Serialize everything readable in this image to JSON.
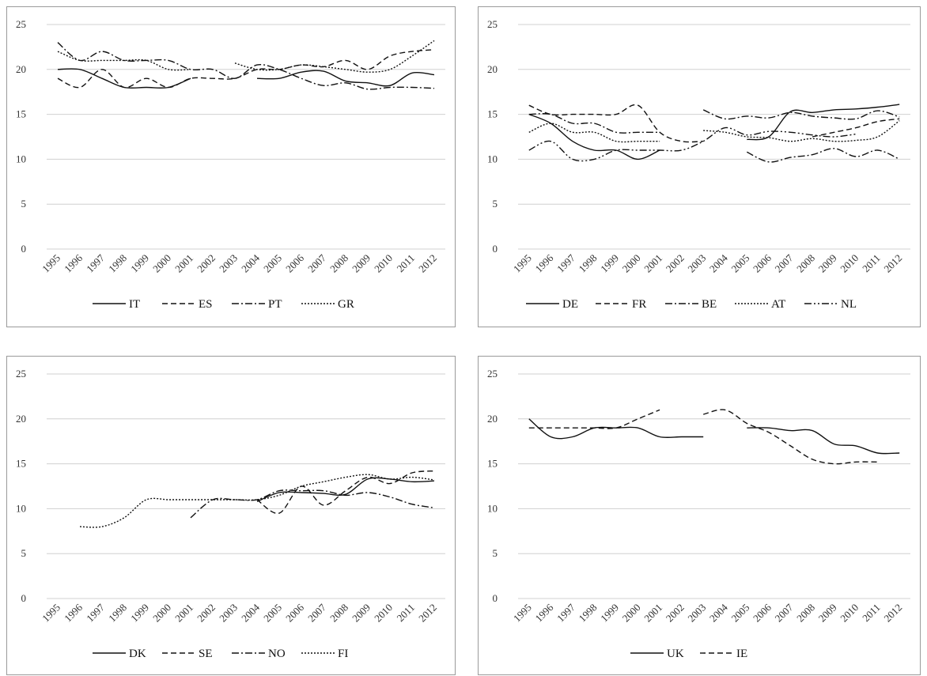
{
  "chart_data": [
    {
      "type": "line",
      "x": [
        "1995",
        "1996",
        "1997",
        "1998",
        "1999",
        "2000",
        "2001",
        "2002",
        "2003",
        "2004",
        "2005",
        "2006",
        "2007",
        "2008",
        "2009",
        "2010",
        "2011",
        "2012"
      ],
      "ylim": [
        0,
        25
      ],
      "yticks": [
        0,
        5,
        10,
        15,
        20,
        25
      ],
      "grid": true,
      "legend": "bottom",
      "series": [
        {
          "name": "IT",
          "dash": "solid",
          "values": [
            20,
            20,
            19,
            18,
            18,
            18,
            19,
            null,
            null,
            19,
            19,
            19.7,
            19.8,
            18.7,
            18.5,
            18.2,
            19.6,
            19.4
          ]
        },
        {
          "name": "ES",
          "dash": "dash",
          "values": [
            19,
            18,
            20,
            18,
            19,
            18,
            19,
            19,
            19,
            20,
            20,
            20.5,
            20.3,
            21,
            20,
            21.5,
            22,
            22.2
          ]
        },
        {
          "name": "PT",
          "dash": "dashdot",
          "values": [
            23,
            21,
            22,
            21,
            21,
            21,
            20,
            20,
            19,
            20.5,
            20,
            19,
            18.2,
            18.5,
            17.8,
            18,
            18,
            17.9
          ]
        },
        {
          "name": "GR",
          "dash": "dot",
          "values": [
            22,
            21,
            21,
            21,
            21,
            20,
            20,
            null,
            20.7,
            20,
            20,
            20.5,
            20.3,
            20,
            19.7,
            20,
            21.5,
            23.2
          ]
        }
      ]
    },
    {
      "type": "line",
      "x": [
        "1995",
        "1996",
        "1997",
        "1998",
        "1999",
        "2000",
        "2001",
        "2002",
        "2003",
        "2004",
        "2005",
        "2006",
        "2007",
        "2008",
        "2009",
        "2010",
        "2011",
        "2012"
      ],
      "ylim": [
        0,
        25
      ],
      "yticks": [
        0,
        5,
        10,
        15,
        20,
        25
      ],
      "grid": true,
      "legend": "bottom",
      "series": [
        {
          "name": "DE",
          "dash": "solid",
          "values": [
            15,
            14,
            12,
            11,
            11,
            10,
            11,
            null,
            null,
            null,
            12.2,
            12.5,
            15.3,
            15.2,
            15.5,
            15.6,
            15.8,
            16.1
          ]
        },
        {
          "name": "FR",
          "dash": "dash",
          "values": [
            16,
            15,
            15,
            15,
            15,
            16,
            13,
            12,
            12,
            null,
            null,
            null,
            null,
            12.5,
            13,
            13.5,
            14.2,
            14.5
          ]
        },
        {
          "name": "BE",
          "dash": "dashdot",
          "values": [
            15,
            15,
            14,
            14,
            13,
            13,
            13,
            null,
            15.5,
            14.5,
            14.8,
            14.6,
            15.2,
            14.8,
            14.6,
            14.5,
            15.4,
            14.7
          ]
        },
        {
          "name": "AT",
          "dash": "dot",
          "values": [
            13,
            14,
            13,
            13,
            12,
            12,
            12,
            null,
            13.2,
            13,
            12.5,
            12.4,
            12,
            12.3,
            12,
            12.1,
            12.5,
            14.3
          ]
        },
        {
          "name": "NL",
          "dash": "dashdotdot",
          "values": [
            11,
            12,
            10,
            10,
            11,
            11,
            11,
            11,
            12,
            13.5,
            12.7,
            13.1,
            13,
            12.7,
            12.5,
            12.8,
            null,
            null
          ]
        },
        {
          "name": "",
          "dash": "dashdot",
          "values": [
            null,
            null,
            null,
            null,
            null,
            null,
            null,
            null,
            null,
            null,
            10.8,
            9.7,
            10.2,
            10.5,
            11.2,
            10.3,
            11,
            10
          ]
        }
      ]
    },
    {
      "type": "line",
      "x": [
        "1995",
        "1996",
        "1997",
        "1998",
        "1999",
        "2000",
        "2001",
        "2002",
        "2003",
        "2004",
        "2005",
        "2006",
        "2007",
        "2008",
        "2009",
        "2010",
        "2011",
        "2012"
      ],
      "ylim": [
        0,
        25
      ],
      "yticks": [
        0,
        5,
        10,
        15,
        20,
        25
      ],
      "grid": true,
      "legend": "bottom",
      "series": [
        {
          "name": "DK",
          "dash": "solid",
          "values": [
            null,
            null,
            null,
            null,
            null,
            null,
            null,
            null,
            null,
            10.8,
            11.8,
            11.8,
            11.7,
            11.6,
            13.3,
            13.3,
            13,
            13.1
          ]
        },
        {
          "name": "SE",
          "dash": "dash",
          "values": [
            null,
            null,
            null,
            null,
            null,
            null,
            null,
            null,
            null,
            11,
            9.5,
            12.5,
            10.4,
            12,
            13.5,
            12.8,
            14,
            14.2
          ]
        },
        {
          "name": "NO",
          "dash": "dashdot",
          "values": [
            null,
            null,
            null,
            null,
            null,
            null,
            9,
            11,
            11,
            11,
            12,
            12,
            12,
            11.5,
            11.8,
            11.3,
            10.5,
            10.1
          ]
        },
        {
          "name": "FI",
          "dash": "dot",
          "values": [
            null,
            8,
            8,
            9,
            11,
            11,
            11,
            11,
            11,
            11,
            11.5,
            12.5,
            13,
            13.5,
            13.8,
            13.3,
            13.5,
            13.2
          ]
        }
      ]
    },
    {
      "type": "line",
      "x": [
        "1995",
        "1996",
        "1997",
        "1998",
        "1999",
        "2000",
        "2001",
        "2002",
        "2003",
        "2004",
        "2005",
        "2006",
        "2007",
        "2008",
        "2009",
        "2010",
        "2011",
        "2012"
      ],
      "ylim": [
        0,
        25
      ],
      "yticks": [
        0,
        5,
        10,
        15,
        20,
        25
      ],
      "grid": true,
      "legend": "bottom",
      "series": [
        {
          "name": "UK",
          "dash": "solid",
          "values": [
            20,
            18,
            18,
            19,
            19,
            19,
            18,
            18,
            18,
            null,
            19,
            19,
            18.7,
            18.7,
            17.2,
            17,
            16.2,
            16.2
          ]
        },
        {
          "name": "IE",
          "dash": "dash",
          "values": [
            19,
            19,
            19,
            19,
            19,
            20,
            21,
            null,
            20.5,
            21,
            19.5,
            18.5,
            17,
            15.5,
            15,
            15.2,
            15.2,
            null
          ]
        }
      ]
    }
  ]
}
